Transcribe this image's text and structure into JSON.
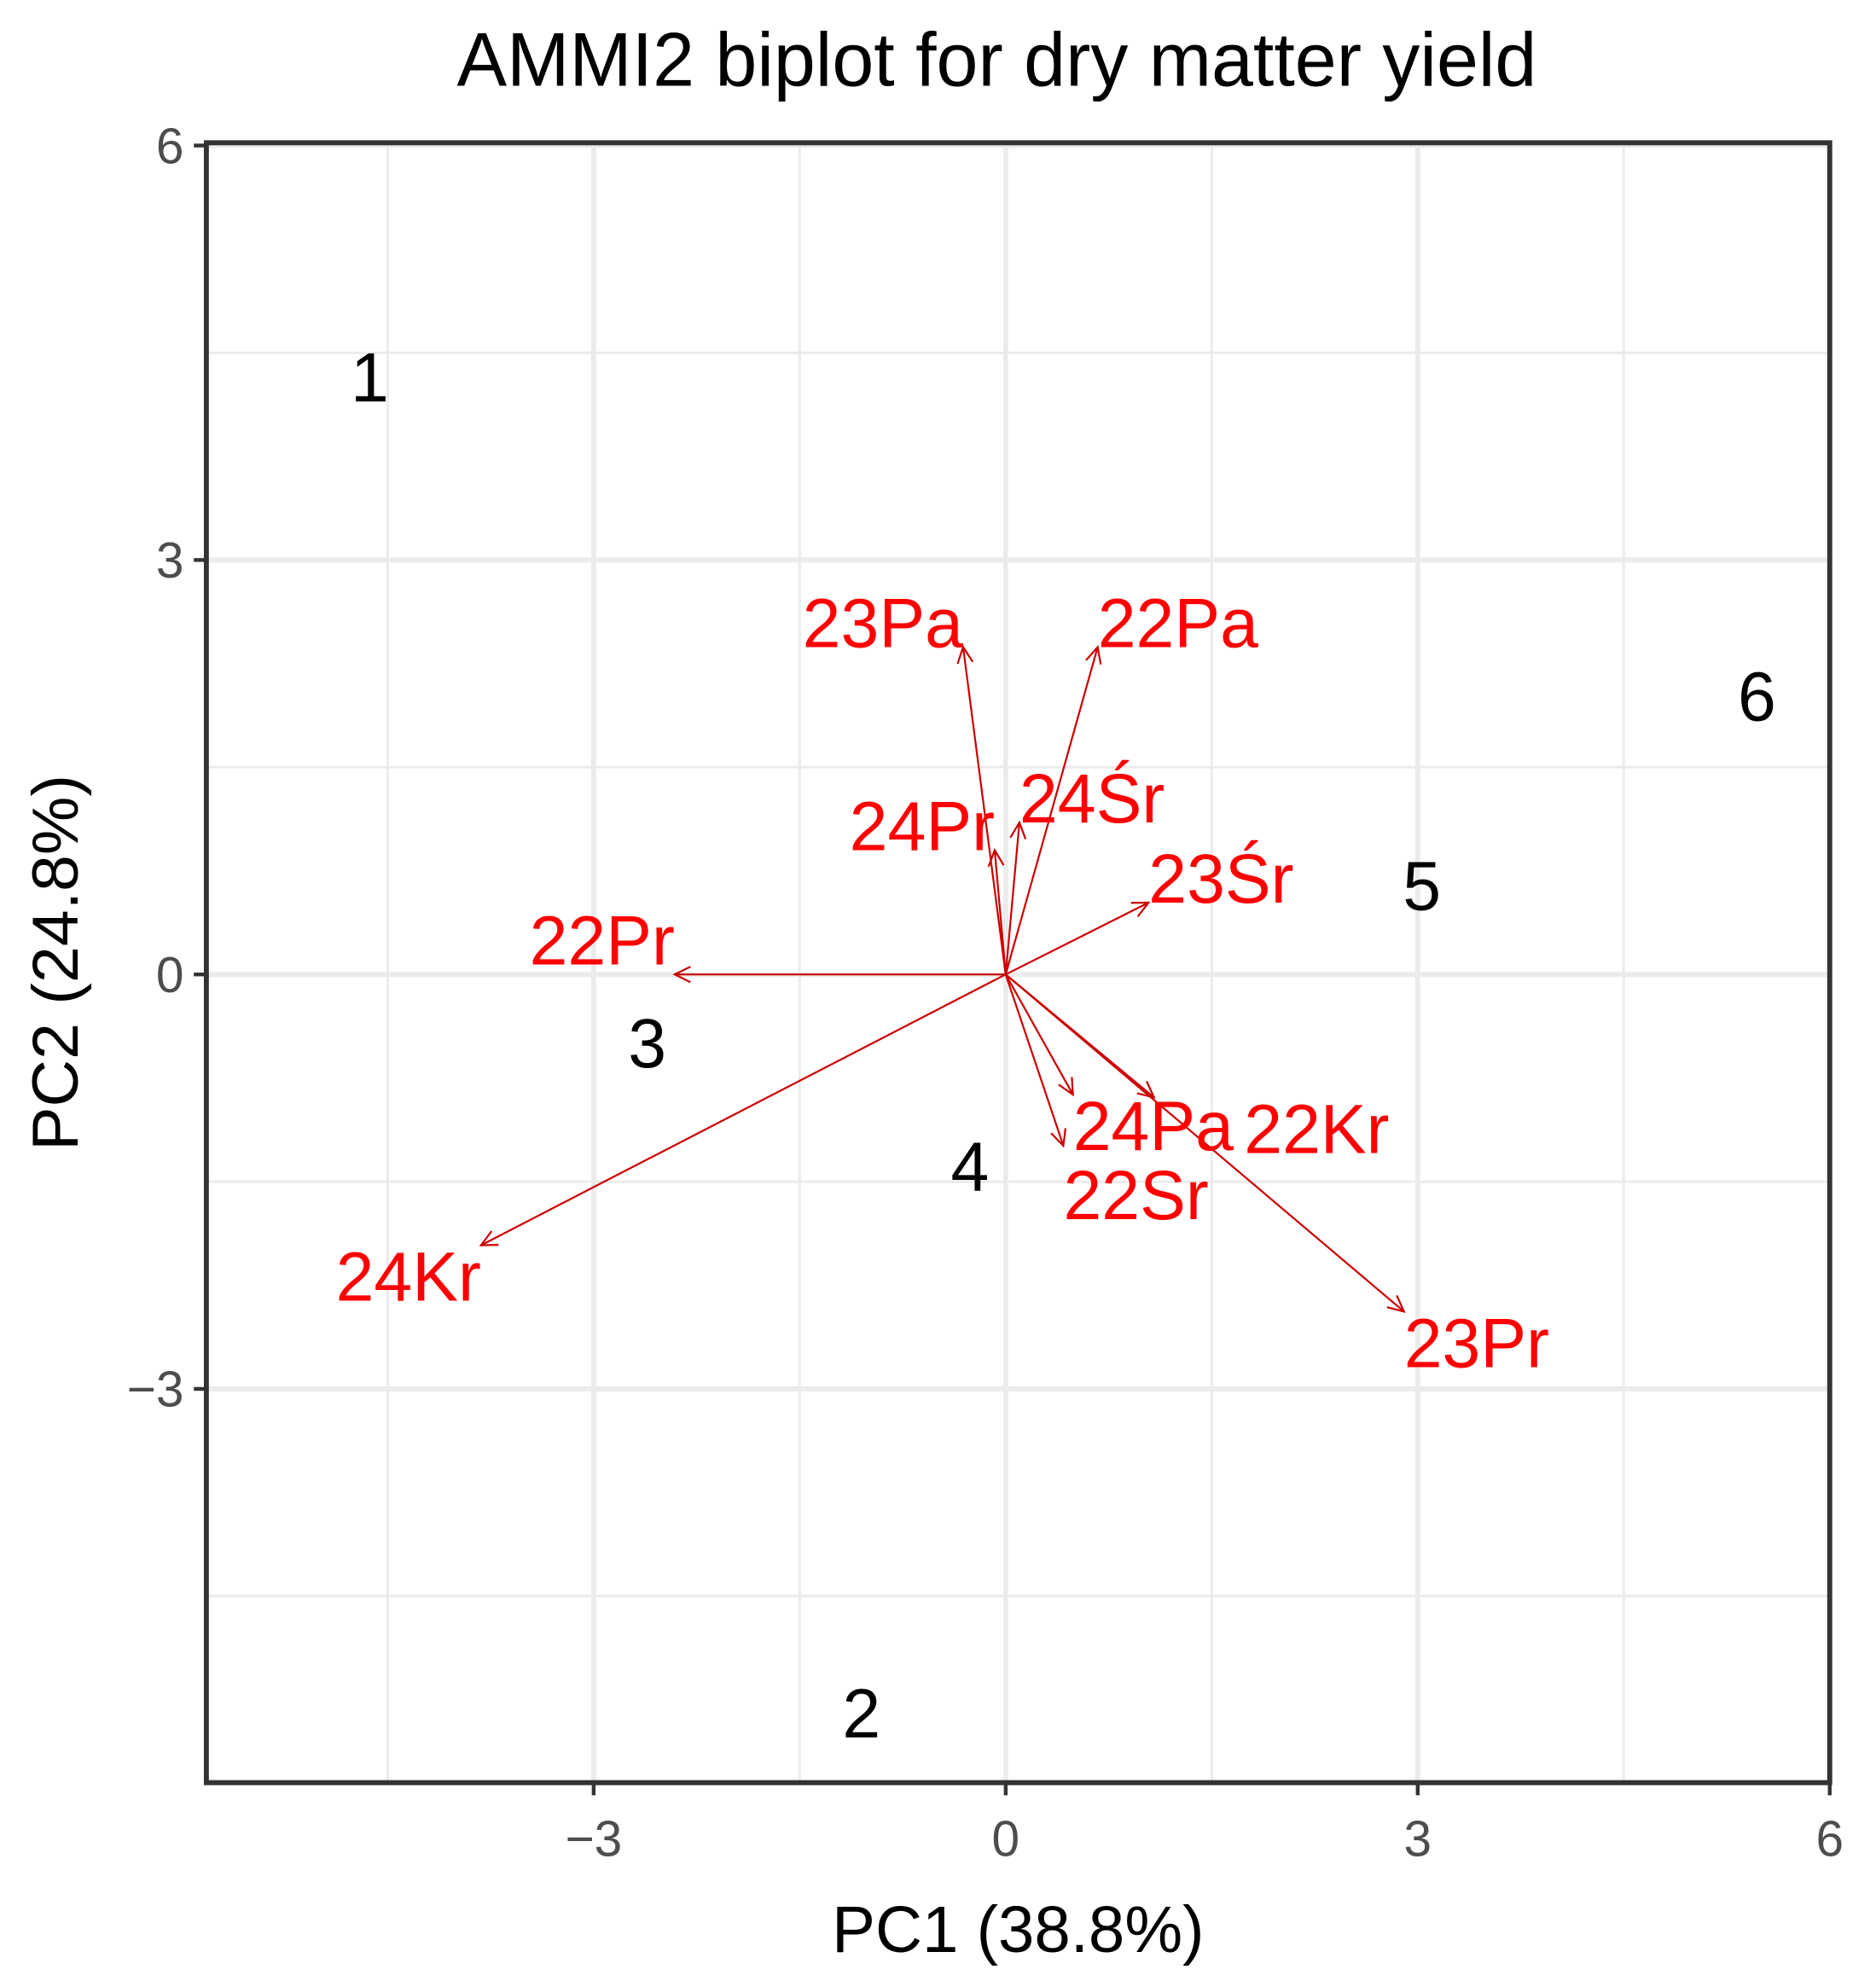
{
  "chart_data": {
    "type": "scatter",
    "title": "AMMI2 biplot for dry matter yield",
    "xlabel": "PC1 (38.8%)",
    "ylabel": "PC2 (24.8%)",
    "xlim": [
      -5.82,
      6.0
    ],
    "ylim": [
      -5.85,
      6.02
    ],
    "xticks": [
      -3,
      0,
      3,
      6
    ],
    "yticks": [
      -3,
      0,
      3,
      6
    ],
    "xtick_labels": [
      "−3",
      "0",
      "3",
      "6"
    ],
    "ytick_labels": [
      "−3",
      "0",
      "3",
      "6"
    ],
    "grid": true,
    "genotypes": [
      {
        "label": "1",
        "x": -4.63,
        "y": 4.33
      },
      {
        "label": "2",
        "x": -1.05,
        "y": -5.34
      },
      {
        "label": "3",
        "x": -2.61,
        "y": -0.49
      },
      {
        "label": "4",
        "x": -0.26,
        "y": -1.38
      },
      {
        "label": "5",
        "x": 3.03,
        "y": 0.65
      },
      {
        "label": "6",
        "x": 5.47,
        "y": 2.02
      }
    ],
    "environments": [
      {
        "label": "23Pa",
        "x": -0.31,
        "y": 2.37
      },
      {
        "label": "22Pa",
        "x": 0.67,
        "y": 2.37
      },
      {
        "label": "24Pr",
        "x": -0.08,
        "y": 0.9
      },
      {
        "label": "24Śr",
        "x": 0.1,
        "y": 1.1
      },
      {
        "label": "23Śr",
        "x": 1.04,
        "y": 0.52
      },
      {
        "label": "22Pr",
        "x": -2.41,
        "y": 0.0
      },
      {
        "label": "24Kr",
        "x": -3.82,
        "y": -1.96
      },
      {
        "label": "23Pr",
        "x": 2.9,
        "y": -2.44
      },
      {
        "label": "24Pa",
        "x": 0.49,
        "y": -0.87
      },
      {
        "label": "22Kr",
        "x": 1.08,
        "y": -0.89
      },
      {
        "label": "22Sr",
        "x": 0.42,
        "y": -1.24
      }
    ],
    "colors": {
      "genotype": "#000000",
      "environment": "#ff0000",
      "arrow": "#cc0000",
      "grid": "#ebebeb"
    }
  }
}
